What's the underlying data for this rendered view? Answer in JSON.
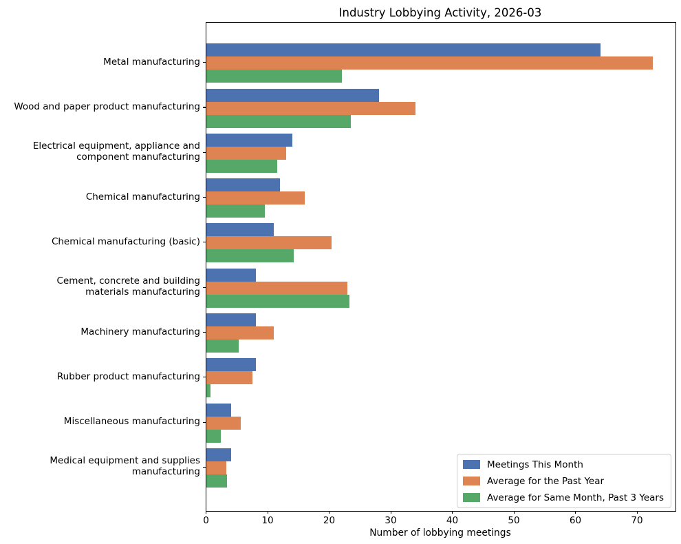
{
  "chart_data": {
    "type": "bar",
    "orientation": "horizontal",
    "title": "Industry Lobbying Activity, 2026-03",
    "xlabel": "Number of lobbying meetings",
    "ylabel": "",
    "xlim": [
      0,
      76.2
    ],
    "xticks": [
      0,
      10,
      20,
      30,
      40,
      50,
      60,
      70
    ],
    "grid": false,
    "legend_position": "lower right",
    "categories": [
      "Metal manufacturing",
      "Wood and paper product manufacturing",
      "Electrical equipment, appliance and\ncomponent manufacturing",
      "Chemical manufacturing",
      "Chemical manufacturing (basic)",
      "Cement, concrete and building\nmaterials manufacturing",
      "Machinery manufacturing",
      "Rubber product manufacturing",
      "Miscellaneous manufacturing",
      "Medical equipment and supplies\nmanufacturing"
    ],
    "series": [
      {
        "name": "Meetings This Month",
        "color": "#4C72B0",
        "values": [
          64,
          28,
          14,
          12,
          11,
          8,
          8,
          8,
          4,
          4
        ]
      },
      {
        "name": "Average for the Past Year",
        "color": "#DD8452",
        "values": [
          72.5,
          34,
          13,
          16,
          20.3,
          22.9,
          11,
          7.5,
          5.6,
          3.2
        ]
      },
      {
        "name": "Average for Same Month, Past 3 Years",
        "color": "#55A868",
        "values": [
          22,
          23.5,
          11.5,
          9.5,
          14.2,
          23.2,
          5.3,
          0.7,
          2.3,
          3.4
        ]
      }
    ]
  }
}
